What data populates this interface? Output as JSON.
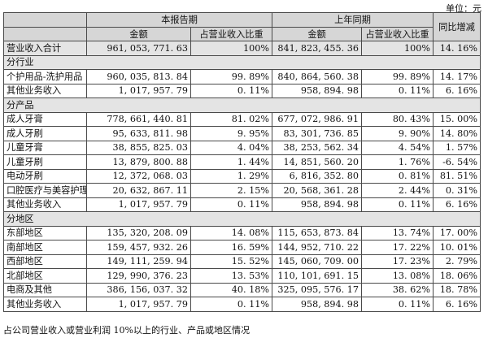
{
  "unit_label": "单位：元",
  "headers": {
    "current_period": "本报告期",
    "prior_period": "上年同期",
    "yoy_change": "同比增减",
    "amount": "金额",
    "share": "占营业收入比重"
  },
  "total": {
    "label": "营业收入合计",
    "cur": "961, 053, 771. 63",
    "cur_pct": "100%",
    "prior": "841, 823, 455. 36",
    "prior_pct": "100%",
    "yoy": "14. 16%"
  },
  "sections": [
    {
      "title": "分行业",
      "rows": [
        {
          "label": "个护用品-洗护用品",
          "cur": "960, 035, 813. 84",
          "cur_pct": "99. 89%",
          "prior": "840, 864, 560. 38",
          "prior_pct": "99. 89%",
          "yoy": "14. 17%"
        },
        {
          "label": "其他业务收入",
          "cur": "1, 017, 957. 79",
          "cur_pct": "0. 11%",
          "prior": "958, 894. 98",
          "prior_pct": "0. 11%",
          "yoy": "6. 16%"
        }
      ]
    },
    {
      "title": "分产品",
      "rows": [
        {
          "label": "成人牙膏",
          "cur": "778, 661, 440. 81",
          "cur_pct": "81. 02%",
          "prior": "677, 072, 986. 91",
          "prior_pct": "80. 43%",
          "yoy": "15. 00%"
        },
        {
          "label": "成人牙刷",
          "cur": "95, 633, 811. 98",
          "cur_pct": "9. 95%",
          "prior": "83, 301, 736. 85",
          "prior_pct": "9. 90%",
          "yoy": "14. 80%"
        },
        {
          "label": "儿童牙膏",
          "cur": "38, 855, 825. 03",
          "cur_pct": "4. 04%",
          "prior": "38, 253, 562. 34",
          "prior_pct": "4. 54%",
          "yoy": "1. 57%"
        },
        {
          "label": "儿童牙刷",
          "cur": "13, 879, 800. 88",
          "cur_pct": "1. 44%",
          "prior": "14, 851, 560. 20",
          "prior_pct": "1. 76%",
          "yoy": "-6. 54%"
        },
        {
          "label": "电动牙刷",
          "cur": "12, 372, 068. 03",
          "cur_pct": "1. 29%",
          "prior": "6, 816, 352. 80",
          "prior_pct": "0. 81%",
          "yoy": "81. 51%"
        },
        {
          "label": "口腔医疗与美容护理产品等",
          "cur": "20, 632, 867. 11",
          "cur_pct": "2. 15%",
          "prior": "20, 568, 361. 28",
          "prior_pct": "2. 44%",
          "yoy": "0. 31%",
          "wrap": true
        },
        {
          "label": "其他业务收入",
          "cur": "1, 017, 957. 79",
          "cur_pct": "0. 11%",
          "prior": "958, 894. 98",
          "prior_pct": "0. 11%",
          "yoy": "6. 16%"
        }
      ]
    },
    {
      "title": "分地区",
      "rows": [
        {
          "label": "东部地区",
          "cur": "135, 320, 208. 09",
          "cur_pct": "14. 08%",
          "prior": "115, 653, 873. 84",
          "prior_pct": "13. 74%",
          "yoy": "17. 00%"
        },
        {
          "label": "南部地区",
          "cur": "159, 457, 932. 26",
          "cur_pct": "16. 59%",
          "prior": "144, 952, 710. 22",
          "prior_pct": "17. 22%",
          "yoy": "10. 01%"
        },
        {
          "label": "西部地区",
          "cur": "149, 111, 259. 94",
          "cur_pct": "15. 52%",
          "prior": "145, 060, 709. 00",
          "prior_pct": "17. 23%",
          "yoy": "2. 79%"
        },
        {
          "label": "北部地区",
          "cur": "129, 990, 376. 23",
          "cur_pct": "13. 53%",
          "prior": "110, 101, 691. 15",
          "prior_pct": "13. 08%",
          "yoy": "18. 06%"
        },
        {
          "label": "电商及其他",
          "cur": "386, 156, 037. 32",
          "cur_pct": "40. 18%",
          "prior": "325, 095, 576. 17",
          "prior_pct": "38. 62%",
          "yoy": "18. 78%"
        },
        {
          "label": "其他业务收入",
          "cur": "1, 017, 957. 79",
          "cur_pct": "0. 11%",
          "prior": "958, 894. 98",
          "prior_pct": "0. 11%",
          "yoy": "6. 16%"
        }
      ]
    }
  ],
  "footnote": "占公司营业收入或营业利润 10%以上的行业、产品或地区情况"
}
